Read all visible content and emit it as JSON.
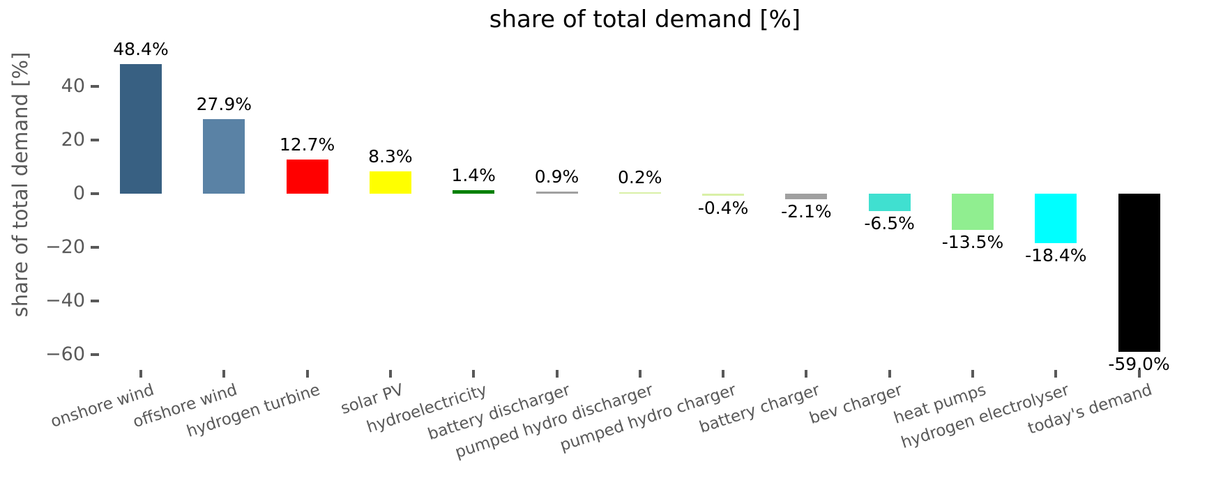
{
  "chart_data": {
    "type": "bar",
    "title": "share of total demand [%]",
    "ylabel": "share of total demand [%]",
    "xlabel": "",
    "ylim": [
      -66,
      53
    ],
    "yticks": [
      40,
      20,
      0,
      -20,
      -40,
      -60
    ],
    "ytick_labels": [
      "40",
      "20",
      "0",
      "−20",
      "−40",
      "−60"
    ],
    "grid": false,
    "legend": false,
    "axis_text_color": "#595959",
    "value_label_color": "#000000",
    "categories": [
      "onshore wind",
      "offshore wind",
      "hydrogen turbine",
      "solar PV",
      "hydroelectricity",
      "battery discharger",
      "pumped hydro discharger",
      "pumped hydro charger",
      "battery charger",
      "bev charger",
      "heat pumps",
      "hydrogen electrolyser",
      "today's demand"
    ],
    "values": [
      48.4,
      27.9,
      12.7,
      8.3,
      1.4,
      0.9,
      0.2,
      -0.4,
      -2.1,
      -6.5,
      -13.5,
      -18.4,
      -59.0
    ],
    "value_labels": [
      "48.4%",
      "27.9%",
      "12.7%",
      "8.3%",
      "1.4%",
      "0.9%",
      "0.2%",
      "-0.4%",
      "-2.1%",
      "-6.5%",
      "-13.5%",
      "-18.4%",
      "-59.0%"
    ],
    "colors": [
      "#386082",
      "#5A82A5",
      "#FF0000",
      "#FFFF00",
      "#008000",
      "#A0A0A0",
      "#D9F0A7",
      "#D9F0A7",
      "#A0A0A0",
      "#40E0D0",
      "#90EE90",
      "#00FFFF",
      "#000000"
    ]
  }
}
